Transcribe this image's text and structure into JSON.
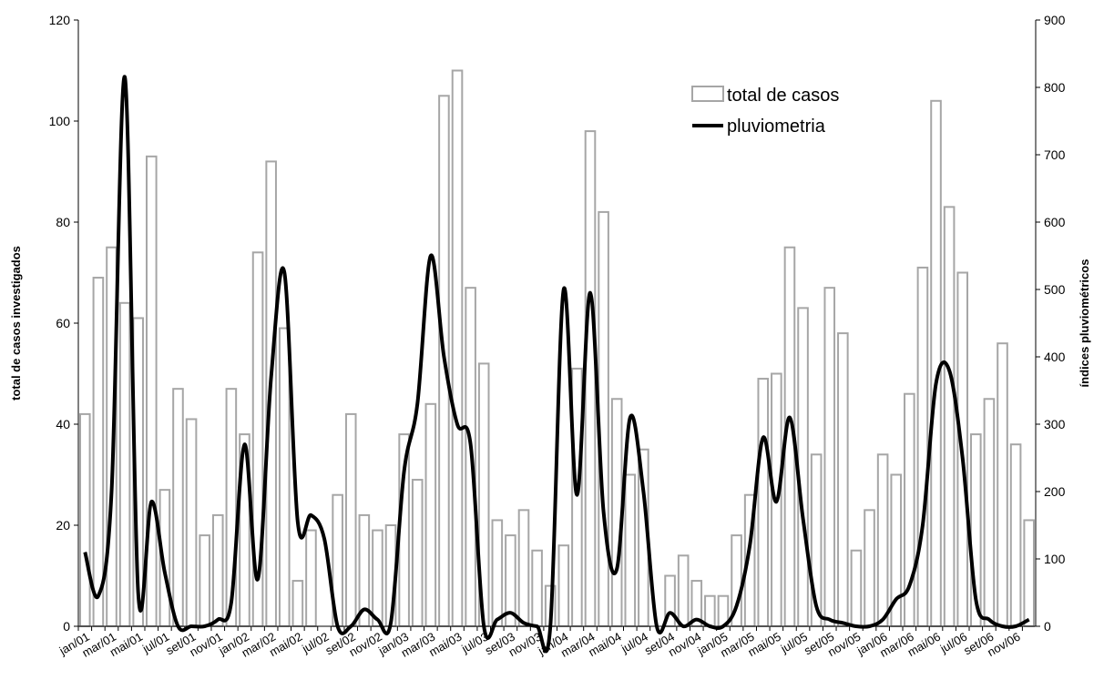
{
  "chart_data": {
    "type": "bar-line",
    "y_label": "total de casos investigados",
    "y2_label": "índices pluviométricos",
    "categories": [
      "jan/01",
      null,
      "mar/01",
      null,
      "mai/01",
      null,
      "jul/01",
      null,
      "set/01",
      null,
      "nov/01",
      null,
      "jan/02",
      null,
      "mar/02",
      null,
      "mai/02",
      null,
      "jul/02",
      null,
      "set/02",
      null,
      "nov/02",
      null,
      "jan/03",
      null,
      "mar/03",
      null,
      "mai/03",
      null,
      "jul/03",
      null,
      "set/03",
      null,
      "nov/03",
      null,
      "jan/04",
      null,
      "mar/04",
      null,
      "mai/04",
      null,
      "jul/04",
      null,
      "set/04",
      null,
      "nov/04",
      null,
      "jan/05",
      null,
      "mar/05",
      null,
      "mai/05",
      null,
      "jul/05",
      null,
      "set/05",
      null,
      "nov/05",
      null,
      "jan/06",
      null,
      "mar/06",
      null,
      "mai/06",
      null,
      "jul/06",
      null,
      "set/06",
      null,
      "nov/06",
      null
    ],
    "series": [
      {
        "name": "total de casos",
        "type": "bar",
        "color": "#a6a6a6",
        "values": [
          42,
          69,
          75,
          64,
          61,
          93,
          27,
          47,
          41,
          18,
          22,
          47,
          38,
          74,
          92,
          59,
          9,
          19,
          0,
          26,
          42,
          22,
          19,
          20,
          38,
          29,
          44,
          105,
          110,
          67,
          52,
          21,
          18,
          23,
          15,
          8,
          16,
          51,
          98,
          82,
          45,
          30,
          35,
          0,
          10,
          14,
          9,
          6,
          6,
          18,
          26,
          49,
          50,
          75,
          63,
          34,
          67,
          58,
          15,
          23,
          34,
          30,
          46,
          71,
          104,
          83,
          70,
          38,
          45,
          56,
          36,
          21
        ]
      },
      {
        "name": "pluviometria",
        "type": "line",
        "axis": "y2",
        "color": "#000000",
        "values": [
          110,
          45,
          200,
          815,
          50,
          185,
          80,
          0,
          0,
          0,
          10,
          35,
          270,
          70,
          370,
          525,
          155,
          165,
          130,
          0,
          0,
          25,
          10,
          5,
          230,
          330,
          550,
          400,
          300,
          270,
          0,
          10,
          20,
          5,
          0,
          0,
          500,
          195,
          495,
          170,
          85,
          310,
          200,
          0,
          20,
          0,
          10,
          0,
          0,
          30,
          120,
          280,
          185,
          310,
          160,
          30,
          10,
          5,
          0,
          0,
          10,
          40,
          60,
          150,
          360,
          380,
          250,
          40,
          10,
          0,
          0,
          10
        ]
      }
    ],
    "ylim": [
      0,
      120
    ],
    "yticks": [
      0,
      20,
      40,
      60,
      80,
      100,
      120
    ],
    "y2lim": [
      0,
      900
    ],
    "y2ticks": [
      0,
      100,
      200,
      300,
      400,
      500,
      600,
      700,
      800,
      900
    ],
    "legend": "upper-right"
  }
}
